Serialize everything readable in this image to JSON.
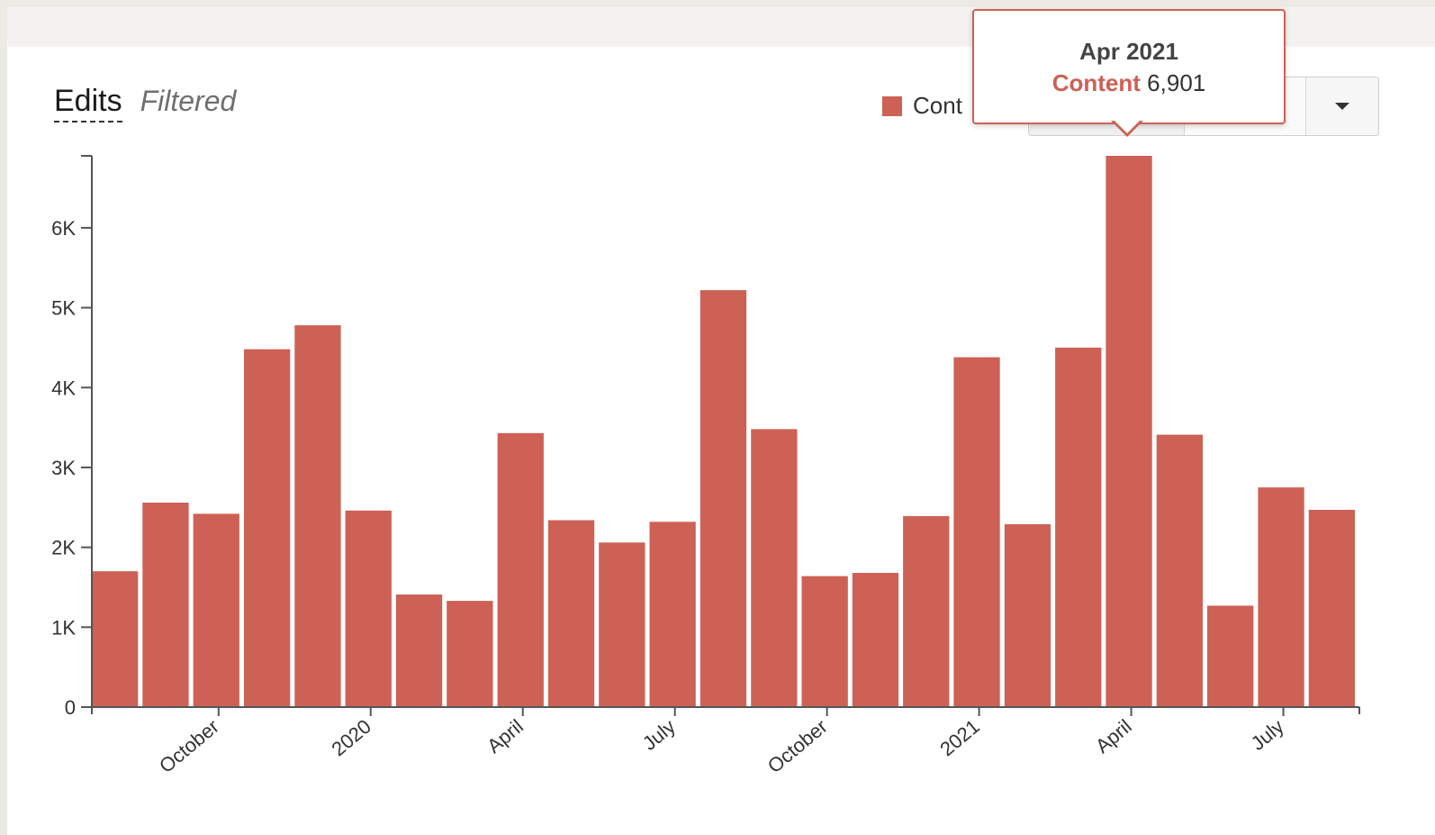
{
  "header": {
    "title": "Edits",
    "subtitle": "Filtered"
  },
  "legend": {
    "label": "Cont",
    "color": "#cd6155"
  },
  "tooltip": {
    "title": "Apr 2021",
    "series": "Content",
    "value": "6,901"
  },
  "controls": {
    "dropdown_icon": "caret-down-icon"
  },
  "chart_data": {
    "type": "bar",
    "color": "#cd6155",
    "ylim": [
      0,
      6901
    ],
    "y_ticks": [
      0,
      1000,
      2000,
      3000,
      4000,
      5000,
      6000
    ],
    "y_tick_labels": [
      "0",
      "1K",
      "2K",
      "3K",
      "4K",
      "5K",
      "6K"
    ],
    "x_tick_labels": [
      "October",
      "2020",
      "April",
      "July",
      "October",
      "2021",
      "April",
      "July"
    ],
    "x_tick_positions": [
      "2019-10",
      "2020-01",
      "2020-04",
      "2020-07",
      "2020-10",
      "2021-01",
      "2021-04",
      "2021-07"
    ],
    "categories": [
      "2019-08",
      "2019-09",
      "2019-10",
      "2019-11",
      "2019-12",
      "2020-01",
      "2020-02",
      "2020-03",
      "2020-04",
      "2020-05",
      "2020-06",
      "2020-07",
      "2020-08",
      "2020-09",
      "2020-10",
      "2020-11",
      "2020-12",
      "2021-01",
      "2021-02",
      "2021-03",
      "2021-04",
      "2021-05",
      "2021-06",
      "2021-07",
      "2021-08"
    ],
    "values": [
      1700,
      2560,
      2420,
      4480,
      4780,
      2460,
      1410,
      1330,
      3430,
      2340,
      2060,
      2320,
      5220,
      3480,
      1640,
      1680,
      2390,
      4380,
      2290,
      4500,
      6901,
      3410,
      1270,
      2750,
      2470
    ],
    "grid": false,
    "legend_position": "top"
  }
}
